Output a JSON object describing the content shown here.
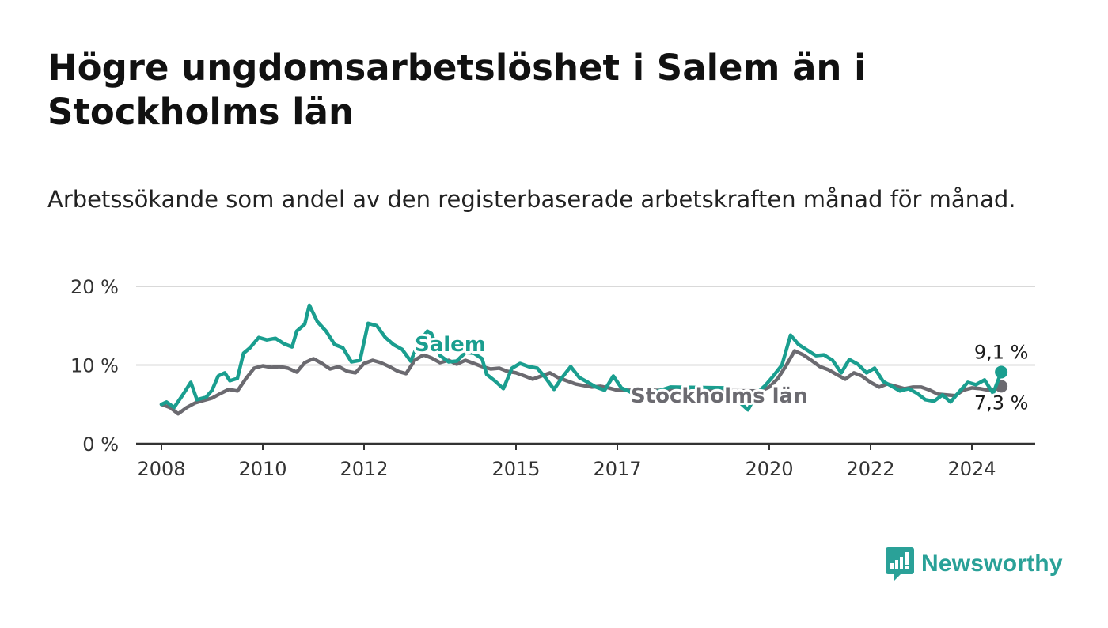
{
  "title": "Högre ungdomsarbetslöshet i Salem än i Stockholms län",
  "subtitle": "Arbetssökande som andel av den registerbaserade arbetskraften månad för månad.",
  "logo_text": "Newsworthy",
  "colors": {
    "salem": "#1a9e8f",
    "stockholm": "#6b6a70",
    "grid": "#d9d9d9",
    "axis": "#333333"
  },
  "chart_data": {
    "type": "line",
    "title": "Högre ungdomsarbetslöshet i Salem än i Stockholms län",
    "xlabel": "",
    "ylabel": "",
    "xlim": [
      2007.5,
      2025.25
    ],
    "ylim": [
      0,
      20
    ],
    "y_ticks": [
      {
        "value": 0,
        "label": "0 %"
      },
      {
        "value": 10,
        "label": "10 %"
      },
      {
        "value": 20,
        "label": "20 %"
      }
    ],
    "x_ticks": [
      {
        "value": 2008,
        "label": "2008"
      },
      {
        "value": 2010,
        "label": "2010"
      },
      {
        "value": 2012,
        "label": "2012"
      },
      {
        "value": 2015,
        "label": "2015"
      },
      {
        "value": 2017,
        "label": "2017"
      },
      {
        "value": 2020,
        "label": "2020"
      },
      {
        "value": 2022,
        "label": "2022"
      },
      {
        "value": 2024,
        "label": "2024"
      }
    ],
    "series": [
      {
        "name": "Stockholms län",
        "label": "Stockholms län",
        "color": "#6b6a70",
        "end_label": "7,3 %",
        "points": [
          [
            2008.0,
            5.0
          ],
          [
            2008.17,
            4.6
          ],
          [
            2008.33,
            3.8
          ],
          [
            2008.5,
            4.6
          ],
          [
            2008.67,
            5.2
          ],
          [
            2008.83,
            5.5
          ],
          [
            2009.0,
            5.8
          ],
          [
            2009.17,
            6.4
          ],
          [
            2009.33,
            6.9
          ],
          [
            2009.5,
            6.7
          ],
          [
            2009.67,
            8.3
          ],
          [
            2009.83,
            9.6
          ],
          [
            2010.0,
            9.9
          ],
          [
            2010.17,
            9.7
          ],
          [
            2010.33,
            9.8
          ],
          [
            2010.5,
            9.6
          ],
          [
            2010.67,
            9.1
          ],
          [
            2010.83,
            10.3
          ],
          [
            2011.0,
            10.8
          ],
          [
            2011.17,
            10.2
          ],
          [
            2011.33,
            9.5
          ],
          [
            2011.5,
            9.8
          ],
          [
            2011.67,
            9.2
          ],
          [
            2011.83,
            9.0
          ],
          [
            2012.0,
            10.2
          ],
          [
            2012.17,
            10.6
          ],
          [
            2012.33,
            10.3
          ],
          [
            2012.5,
            9.8
          ],
          [
            2012.67,
            9.2
          ],
          [
            2012.83,
            8.9
          ],
          [
            2013.0,
            10.6
          ],
          [
            2013.17,
            11.3
          ],
          [
            2013.33,
            10.9
          ],
          [
            2013.5,
            10.3
          ],
          [
            2013.67,
            10.6
          ],
          [
            2013.83,
            10.1
          ],
          [
            2014.0,
            10.6
          ],
          [
            2014.17,
            10.2
          ],
          [
            2014.33,
            9.8
          ],
          [
            2014.5,
            9.5
          ],
          [
            2014.67,
            9.6
          ],
          [
            2014.83,
            9.2
          ],
          [
            2015.0,
            9.0
          ],
          [
            2015.17,
            8.6
          ],
          [
            2015.33,
            8.2
          ],
          [
            2015.5,
            8.6
          ],
          [
            2015.67,
            9.0
          ],
          [
            2015.83,
            8.4
          ],
          [
            2016.0,
            8.0
          ],
          [
            2016.17,
            7.6
          ],
          [
            2016.33,
            7.4
          ],
          [
            2016.5,
            7.2
          ],
          [
            2016.67,
            7.3
          ],
          [
            2016.83,
            7.1
          ],
          [
            2017.0,
            6.8
          ],
          [
            2019.83,
            6.7
          ],
          [
            2020.0,
            7.2
          ],
          [
            2020.17,
            8.3
          ],
          [
            2020.33,
            9.9
          ],
          [
            2020.5,
            11.8
          ],
          [
            2020.67,
            11.3
          ],
          [
            2020.83,
            10.6
          ],
          [
            2021.0,
            9.8
          ],
          [
            2021.17,
            9.4
          ],
          [
            2021.33,
            8.8
          ],
          [
            2021.5,
            8.2
          ],
          [
            2021.67,
            9.0
          ],
          [
            2021.83,
            8.6
          ],
          [
            2022.0,
            7.8
          ],
          [
            2022.17,
            7.2
          ],
          [
            2022.33,
            7.6
          ],
          [
            2022.5,
            7.3
          ],
          [
            2022.67,
            7.0
          ],
          [
            2022.83,
            7.2
          ],
          [
            2023.0,
            7.2
          ],
          [
            2023.17,
            6.8
          ],
          [
            2023.33,
            6.3
          ],
          [
            2023.5,
            6.2
          ],
          [
            2023.67,
            6.1
          ],
          [
            2023.83,
            6.8
          ],
          [
            2024.0,
            7.1
          ],
          [
            2024.17,
            7.0
          ],
          [
            2024.33,
            6.8
          ],
          [
            2024.5,
            7.0
          ],
          [
            2024.58,
            7.3
          ]
        ]
      },
      {
        "name": "Salem",
        "label": "Salem",
        "color": "#1a9e8f",
        "end_label": "9,1 %",
        "points": [
          [
            2008.0,
            5.0
          ],
          [
            2008.1,
            5.3
          ],
          [
            2008.25,
            4.6
          ],
          [
            2008.42,
            6.2
          ],
          [
            2008.58,
            7.8
          ],
          [
            2008.7,
            5.6
          ],
          [
            2008.88,
            5.9
          ],
          [
            2009.0,
            6.8
          ],
          [
            2009.12,
            8.6
          ],
          [
            2009.25,
            9.0
          ],
          [
            2009.35,
            8.0
          ],
          [
            2009.5,
            8.3
          ],
          [
            2009.62,
            11.5
          ],
          [
            2009.75,
            12.2
          ],
          [
            2009.92,
            13.5
          ],
          [
            2010.08,
            13.2
          ],
          [
            2010.25,
            13.4
          ],
          [
            2010.42,
            12.7
          ],
          [
            2010.58,
            12.3
          ],
          [
            2010.67,
            14.3
          ],
          [
            2010.83,
            15.2
          ],
          [
            2010.92,
            17.6
          ],
          [
            2011.08,
            15.5
          ],
          [
            2011.25,
            14.3
          ],
          [
            2011.42,
            12.6
          ],
          [
            2011.58,
            12.2
          ],
          [
            2011.75,
            10.4
          ],
          [
            2011.92,
            10.6
          ],
          [
            2012.08,
            15.3
          ],
          [
            2012.25,
            15.0
          ],
          [
            2012.42,
            13.5
          ],
          [
            2012.58,
            12.6
          ],
          [
            2012.75,
            12.0
          ],
          [
            2012.92,
            10.5
          ],
          [
            2013.08,
            12.8
          ],
          [
            2013.25,
            14.3
          ],
          [
            2013.33,
            14.0
          ],
          [
            2013.5,
            11.2
          ],
          [
            2013.67,
            10.4
          ],
          [
            2013.83,
            10.5
          ],
          [
            2014.0,
            11.6
          ],
          [
            2014.17,
            11.5
          ],
          [
            2014.33,
            10.8
          ],
          [
            2014.42,
            8.8
          ],
          [
            2014.58,
            8.0
          ],
          [
            2014.75,
            7.0
          ],
          [
            2014.92,
            9.6
          ],
          [
            2015.08,
            10.2
          ],
          [
            2015.25,
            9.8
          ],
          [
            2015.42,
            9.6
          ],
          [
            2015.58,
            8.4
          ],
          [
            2015.75,
            6.9
          ],
          [
            2015.92,
            8.5
          ],
          [
            2016.08,
            9.8
          ],
          [
            2016.25,
            8.4
          ],
          [
            2016.42,
            7.8
          ],
          [
            2016.58,
            7.2
          ],
          [
            2016.75,
            6.8
          ],
          [
            2016.92,
            8.6
          ],
          [
            2017.08,
            7.1
          ],
          [
            2017.25,
            6.6
          ],
          [
            2017.42,
            5.9
          ],
          [
            2018.05,
            7.2
          ],
          [
            2019.1,
            7.1
          ],
          [
            2019.58,
            4.3
          ],
          [
            2019.75,
            6.4
          ],
          [
            2019.92,
            7.4
          ],
          [
            2020.08,
            8.6
          ],
          [
            2020.25,
            10.0
          ],
          [
            2020.42,
            13.8
          ],
          [
            2020.58,
            12.6
          ],
          [
            2020.75,
            11.9
          ],
          [
            2020.92,
            11.2
          ],
          [
            2021.08,
            11.3
          ],
          [
            2021.25,
            10.6
          ],
          [
            2021.42,
            9.0
          ],
          [
            2021.58,
            10.7
          ],
          [
            2021.75,
            10.1
          ],
          [
            2021.92,
            9.0
          ],
          [
            2022.08,
            9.6
          ],
          [
            2022.25,
            7.9
          ],
          [
            2022.42,
            7.3
          ],
          [
            2022.58,
            6.7
          ],
          [
            2022.75,
            7.0
          ],
          [
            2022.92,
            6.4
          ],
          [
            2023.08,
            5.6
          ],
          [
            2023.25,
            5.4
          ],
          [
            2023.42,
            6.2
          ],
          [
            2023.58,
            5.3
          ],
          [
            2023.75,
            6.6
          ],
          [
            2023.92,
            7.8
          ],
          [
            2024.08,
            7.5
          ],
          [
            2024.25,
            8.1
          ],
          [
            2024.42,
            6.4
          ],
          [
            2024.58,
            9.1
          ]
        ]
      }
    ]
  }
}
